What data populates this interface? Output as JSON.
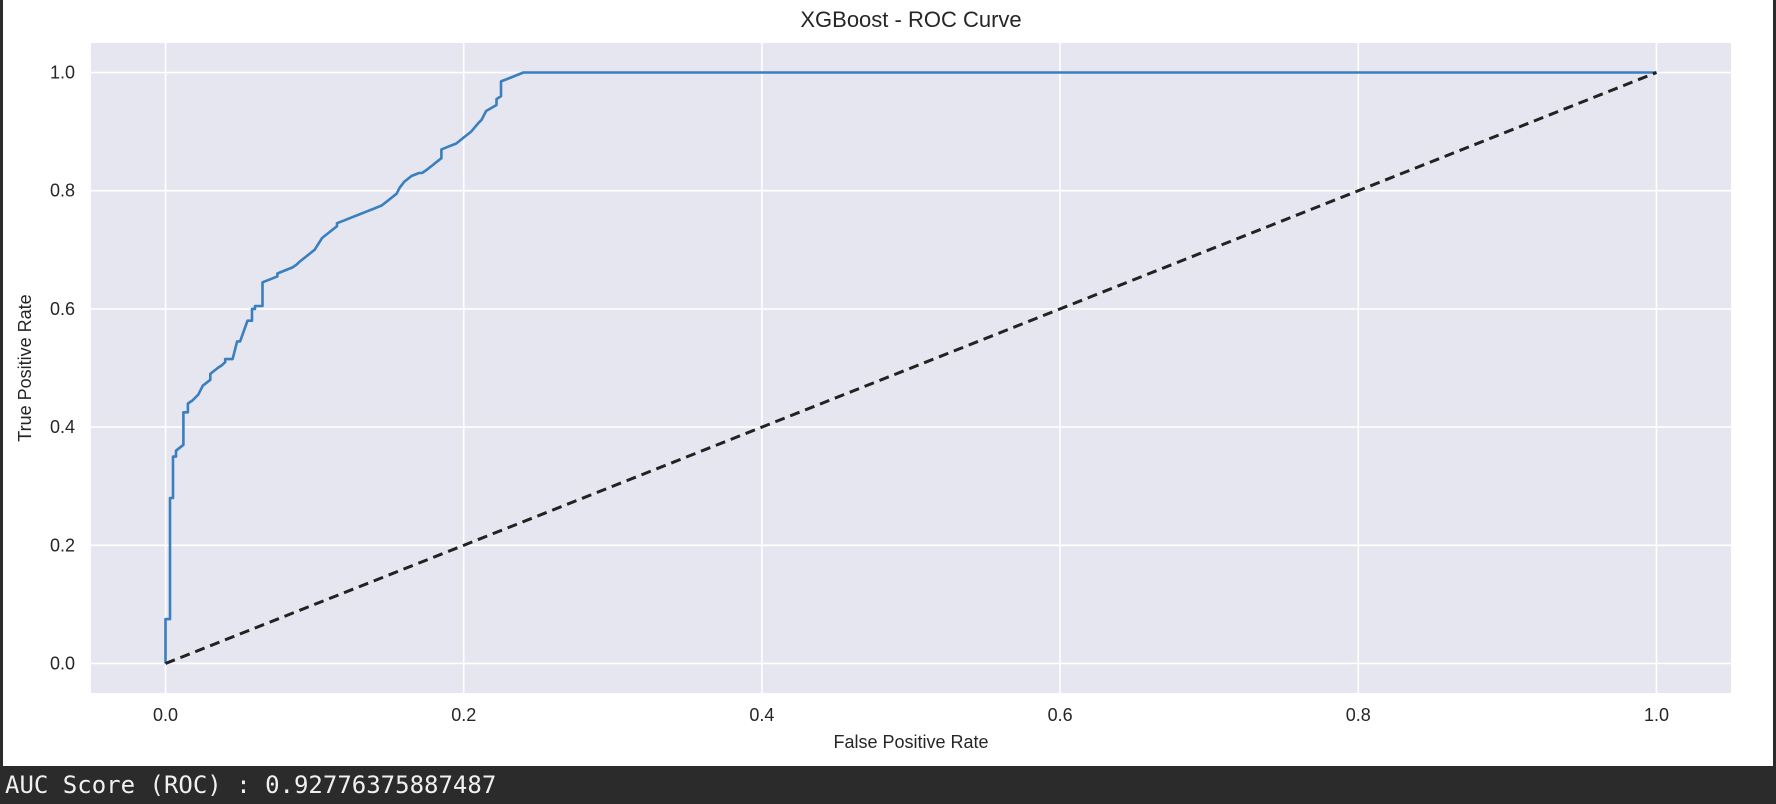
{
  "chart_data": {
    "type": "line",
    "title": "XGBoost - ROC Curve",
    "xlabel": "False Positive Rate",
    "ylabel": "True Positive Rate",
    "xlim": [
      -0.05,
      1.05
    ],
    "ylim": [
      -0.05,
      1.05
    ],
    "xticks": [
      0.0,
      0.2,
      0.4,
      0.6,
      0.8,
      1.0
    ],
    "yticks": [
      0.0,
      0.2,
      0.4,
      0.6,
      0.8,
      1.0
    ],
    "xtick_labels": [
      "0.0",
      "0.2",
      "0.4",
      "0.6",
      "0.8",
      "1.0"
    ],
    "ytick_labels": [
      "0.0",
      "0.2",
      "0.4",
      "0.6",
      "0.8",
      "1.0"
    ],
    "grid": true,
    "background": "#e5e6ef",
    "series": [
      {
        "color": "#3a7fbe",
        "style": "solid",
        "x": [
          0.0,
          0.0,
          0.003,
          0.003,
          0.005,
          0.005,
          0.007,
          0.007,
          0.012,
          0.012,
          0.015,
          0.015,
          0.018,
          0.02,
          0.022,
          0.025,
          0.03,
          0.03,
          0.035,
          0.038,
          0.04,
          0.04,
          0.045,
          0.048,
          0.05,
          0.055,
          0.058,
          0.058,
          0.06,
          0.06,
          0.065,
          0.065,
          0.075,
          0.075,
          0.08,
          0.085,
          0.088,
          0.09,
          0.095,
          0.1,
          0.105,
          0.11,
          0.115,
          0.115,
          0.12,
          0.125,
          0.13,
          0.135,
          0.14,
          0.145,
          0.15,
          0.155,
          0.157,
          0.16,
          0.165,
          0.17,
          0.172,
          0.175,
          0.18,
          0.185,
          0.185,
          0.19,
          0.195,
          0.2,
          0.205,
          0.21,
          0.212,
          0.215,
          0.222,
          0.222,
          0.225,
          0.225,
          0.23,
          0.235,
          0.24,
          0.3,
          0.4,
          0.5,
          0.6,
          0.7,
          0.8,
          0.9,
          1.0
        ],
        "y": [
          0.0,
          0.075,
          0.075,
          0.28,
          0.28,
          0.35,
          0.35,
          0.36,
          0.37,
          0.425,
          0.425,
          0.44,
          0.445,
          0.45,
          0.455,
          0.47,
          0.48,
          0.49,
          0.5,
          0.505,
          0.51,
          0.515,
          0.515,
          0.545,
          0.545,
          0.58,
          0.58,
          0.6,
          0.6,
          0.605,
          0.605,
          0.645,
          0.655,
          0.66,
          0.665,
          0.67,
          0.675,
          0.68,
          0.69,
          0.7,
          0.72,
          0.73,
          0.74,
          0.745,
          0.75,
          0.755,
          0.76,
          0.765,
          0.77,
          0.775,
          0.785,
          0.795,
          0.805,
          0.815,
          0.825,
          0.83,
          0.83,
          0.835,
          0.845,
          0.855,
          0.87,
          0.875,
          0.88,
          0.89,
          0.9,
          0.915,
          0.92,
          0.935,
          0.945,
          0.955,
          0.96,
          0.985,
          0.99,
          0.995,
          1.0,
          1.0,
          1.0,
          1.0,
          1.0,
          1.0,
          1.0,
          1.0,
          1.0
        ]
      },
      {
        "color": "#222222",
        "style": "dashed",
        "x": [
          0.0,
          1.0
        ],
        "y": [
          0.0,
          1.0
        ]
      }
    ]
  },
  "output": {
    "auc_text": "AUC Score (ROC) : 0.92776375887487"
  }
}
